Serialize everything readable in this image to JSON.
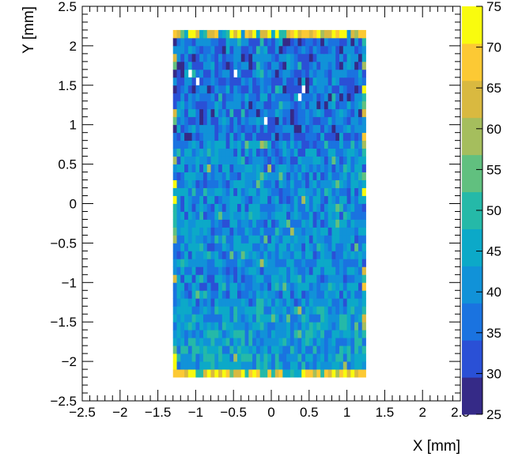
{
  "chart_data": {
    "type": "heatmap",
    "title": "",
    "xlabel": "X [mm]",
    "ylabel": "Y [mm]",
    "xlim": [
      -2.5,
      2.5
    ],
    "ylim": [
      -2.5,
      2.5
    ],
    "x_ticks": [
      "−2.5",
      "−2",
      "−1.5",
      "−1",
      "−0.5",
      "0",
      "0.5",
      "1",
      "1.5",
      "2",
      "2.5"
    ],
    "y_ticks": [
      "−2.5",
      "−2",
      "−1.5",
      "−1",
      "−0.5",
      "0",
      "0.5",
      "1",
      "1.5",
      "2",
      "2.5"
    ],
    "colorbar_ticks": [
      "25",
      "30",
      "35",
      "40",
      "45",
      "50",
      "55",
      "60",
      "65",
      "70",
      "75"
    ],
    "zlim": [
      25,
      75
    ],
    "palette": [
      "#352a87",
      "#2a50d6",
      "#1a73e0",
      "#1192d8",
      "#0ca9c8",
      "#25b9a8",
      "#61c07f",
      "#a5be5d",
      "#d9b940",
      "#fcc934",
      "#f9fb0e"
    ],
    "active_region": {
      "x": [
        -1.3,
        1.25
      ],
      "y": [
        -2.2,
        2.2
      ]
    },
    "column_dy": -0.05,
    "row_dy": 0.1,
    "empty_bins": [
      [
        -1.05,
        1.65
      ],
      [
        -0.95,
        1.55
      ],
      [
        -0.45,
        1.65
      ],
      [
        -0.05,
        1.05
      ],
      [
        0.4,
        1.35
      ],
      [
        0.45,
        1.45
      ]
    ],
    "typical_value_range": [
      32,
      48
    ],
    "edge_value_range": [
      60,
      75
    ],
    "grid": false
  }
}
